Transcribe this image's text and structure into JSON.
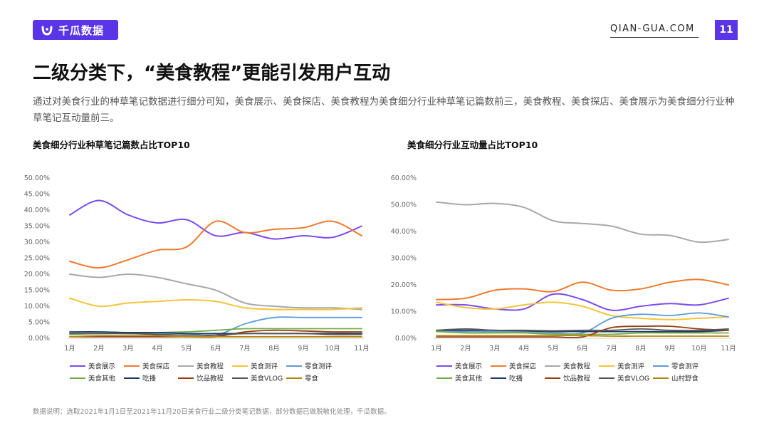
{
  "header": {
    "logo_text": "千瓜数据",
    "site": "QIAN-GUA.COM",
    "page_number": "11",
    "brand_color": "#5a35e8"
  },
  "title": "二级分类下，“美食教程”更能引发用户互动",
  "description": "通过对美食行业的种草笔记数据进行细分可知，美食展示、美食探店、美食教程为美食细分行业种草笔记篇数前三，美食教程、美食探店、美食展示为美食细分行业种草笔记互动量前三。",
  "footnote": "数据说明：选取2021年1月1日至2021年11月20日美食行业二级分类笔记数据，部分数据已做脱敏化处理，千瓜数据。",
  "chart_data": [
    {
      "type": "line",
      "title": "美食细分行业种草笔记篇数占比TOP10",
      "categories": [
        "1月",
        "2月",
        "3月",
        "4月",
        "5月",
        "6月",
        "7月",
        "8月",
        "9月",
        "10月",
        "11月"
      ],
      "ylim": [
        0,
        50
      ],
      "yticks": [
        "0.00%",
        "5.00%",
        "10.00%",
        "15.00%",
        "20.00%",
        "25.00%",
        "30.00%",
        "35.00%",
        "40.00%",
        "45.00%",
        "50.00%"
      ],
      "legend_position": "bottom",
      "series": [
        {
          "name": "美食展示",
          "color": "#7a4cf0",
          "values": [
            38.5,
            43,
            38.5,
            36,
            37,
            32,
            33,
            31,
            32,
            31.5,
            35
          ]
        },
        {
          "name": "美食探店",
          "color": "#f07a30",
          "values": [
            24,
            22,
            24.5,
            27.5,
            28.5,
            36.5,
            33,
            34,
            34.5,
            36.5,
            32
          ]
        },
        {
          "name": "美食教程",
          "color": "#a8a8a8",
          "values": [
            20,
            19,
            20,
            19,
            17,
            15,
            11,
            10,
            9.5,
            9.5,
            9
          ]
        },
        {
          "name": "美食测评",
          "color": "#f5c43a",
          "values": [
            12.5,
            10,
            11,
            11.5,
            12,
            11.5,
            9.5,
            9,
            9,
            9,
            9.5
          ]
        },
        {
          "name": "零食测评",
          "color": "#5b9bd5",
          "values": [
            1.5,
            1.5,
            1.5,
            1.5,
            1.5,
            1,
            4.5,
            6.5,
            6.5,
            6.5,
            6.5
          ]
        },
        {
          "name": "美食其他",
          "color": "#70ad47",
          "values": [
            1.2,
            1.5,
            1.5,
            1.8,
            2,
            2.5,
            3,
            3,
            3,
            3,
            3
          ]
        },
        {
          "name": "吃播",
          "color": "#1f3a68",
          "values": [
            2,
            2,
            1.8,
            1.8,
            1.5,
            1.5,
            1.5,
            1.5,
            1.5,
            1.5,
            1.5
          ]
        },
        {
          "name": "饮品教程",
          "color": "#9b3d10",
          "values": [
            0.5,
            0.5,
            0.5,
            0.5,
            0.5,
            0.5,
            2,
            2.5,
            2.3,
            2,
            2
          ]
        },
        {
          "name": "美食VLOG",
          "color": "#555555",
          "values": [
            1.5,
            1.5,
            1.5,
            1.2,
            1,
            1,
            1.5,
            1.5,
            1.5,
            1.2,
            1.2
          ]
        },
        {
          "name": "零食",
          "color": "#b8860b",
          "values": [
            0.5,
            0.8,
            0.8,
            0.8,
            0.5,
            0.5,
            0.5,
            0.5,
            0.5,
            0.5,
            0.5
          ]
        }
      ]
    },
    {
      "type": "line",
      "title": "美食细分行业互动量占比TOP10",
      "categories": [
        "1月",
        "2月",
        "3月",
        "4月",
        "5月",
        "6月",
        "7月",
        "8月",
        "9月",
        "10月",
        "11月"
      ],
      "ylim": [
        0,
        60
      ],
      "yticks": [
        "0.00%",
        "10.00%",
        "20.00%",
        "30.00%",
        "40.00%",
        "50.00%",
        "60.00%"
      ],
      "legend_position": "bottom",
      "series": [
        {
          "name": "美食展示",
          "color": "#7a4cf0",
          "values": [
            12.5,
            12.5,
            11,
            11,
            16.5,
            14.5,
            10.5,
            12,
            13,
            12.5,
            15
          ]
        },
        {
          "name": "美食探店",
          "color": "#f07a30",
          "values": [
            14.5,
            15,
            18,
            18.5,
            17.5,
            21,
            18,
            18.5,
            21,
            22,
            20
          ]
        },
        {
          "name": "美食教程",
          "color": "#a8a8a8",
          "values": [
            51,
            50,
            50.5,
            49,
            44,
            43,
            42,
            39,
            38.5,
            36,
            37
          ]
        },
        {
          "name": "美食测评",
          "color": "#f5c43a",
          "values": [
            13.5,
            11.5,
            11,
            12.5,
            13.5,
            12,
            8.5,
            7.5,
            7,
            7.5,
            8
          ]
        },
        {
          "name": "零食测评",
          "color": "#5b9bd5",
          "values": [
            2.5,
            2.5,
            2.5,
            2.5,
            2,
            2,
            7.5,
            9,
            8.5,
            9.5,
            8
          ]
        },
        {
          "name": "美食其他",
          "color": "#70ad47",
          "values": [
            2.5,
            2,
            2,
            2,
            1.5,
            1.5,
            1.5,
            2,
            2,
            2,
            2
          ]
        },
        {
          "name": "吃播",
          "color": "#1f3a68",
          "values": [
            3,
            3,
            3,
            2.8,
            2.5,
            2.5,
            2.5,
            2.5,
            2.5,
            2.5,
            3
          ]
        },
        {
          "name": "饮品教程",
          "color": "#9b3d10",
          "values": [
            0.5,
            0.5,
            0.5,
            0.5,
            0.5,
            0.5,
            4,
            4.5,
            4.5,
            3.5,
            3
          ]
        },
        {
          "name": "美食VLOG",
          "color": "#555555",
          "values": [
            3,
            3.5,
            3,
            3,
            2.8,
            3,
            3,
            3.5,
            3,
            3,
            3.5
          ]
        },
        {
          "name": "山村野食",
          "color": "#b8860b",
          "values": [
            1,
            1,
            1,
            1,
            1,
            1,
            0.8,
            0.8,
            0.8,
            0.8,
            0.8
          ]
        }
      ]
    }
  ]
}
